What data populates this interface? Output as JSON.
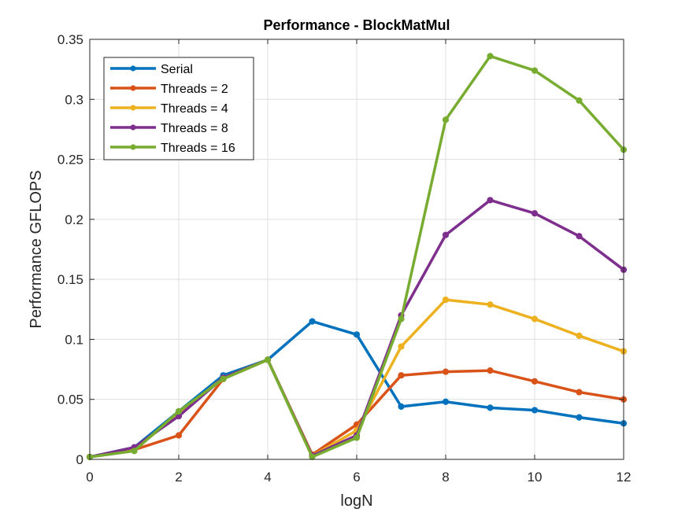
{
  "chart_data": {
    "type": "line",
    "title": "Performance - BlockMatMul",
    "xlabel": "logN",
    "ylabel": "Performance GFLOPS",
    "xlim": [
      0,
      12
    ],
    "ylim": [
      0,
      0.35
    ],
    "xticks": [
      0,
      2,
      4,
      6,
      8,
      10,
      12
    ],
    "xtick_labels": [
      "0",
      "2",
      "4",
      "6",
      "8",
      "10",
      "12"
    ],
    "yticks": [
      0,
      0.05,
      0.1,
      0.15,
      0.2,
      0.25,
      0.3,
      0.35
    ],
    "ytick_labels": [
      "0",
      "0.05",
      "0.1",
      "0.15",
      "0.2",
      "0.25",
      "0.3",
      "0.35"
    ],
    "grid": true,
    "legend_position": "top-left",
    "x": [
      0,
      1,
      2,
      3,
      4,
      5,
      6,
      7,
      8,
      9,
      10,
      11,
      12
    ],
    "series": [
      {
        "name": "Serial",
        "color": "#0072BD",
        "values": [
          0.002,
          0.01,
          0.04,
          0.07,
          0.083,
          0.115,
          0.104,
          0.044,
          0.048,
          0.043,
          0.041,
          0.035,
          0.03
        ]
      },
      {
        "name": "Threads = 2",
        "color": "#D95319",
        "values": [
          0.002,
          0.008,
          0.02,
          0.067,
          0.083,
          0.004,
          0.029,
          0.07,
          0.073,
          0.074,
          0.065,
          0.056,
          0.05
        ]
      },
      {
        "name": "Threads = 4",
        "color": "#EDB120",
        "values": [
          0.002,
          0.008,
          0.038,
          0.068,
          0.083,
          0.003,
          0.024,
          0.094,
          0.133,
          0.129,
          0.117,
          0.103,
          0.09
        ]
      },
      {
        "name": "Threads = 8",
        "color": "#7E2F8E",
        "values": [
          0.002,
          0.01,
          0.036,
          0.068,
          0.083,
          0.003,
          0.02,
          0.12,
          0.187,
          0.216,
          0.205,
          0.186,
          0.158
        ]
      },
      {
        "name": "Threads = 16",
        "color": "#77AC30",
        "values": [
          0.002,
          0.007,
          0.04,
          0.067,
          0.083,
          0.002,
          0.018,
          0.117,
          0.283,
          0.336,
          0.324,
          0.299,
          0.258
        ]
      }
    ]
  }
}
